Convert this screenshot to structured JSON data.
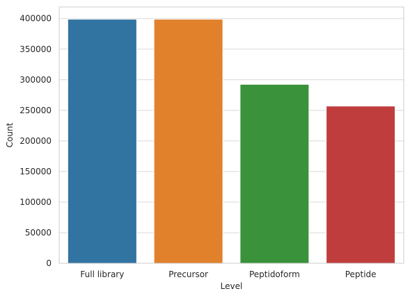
{
  "chart_data": {
    "type": "bar",
    "categories": [
      "Full library",
      "Precursor",
      "Peptidoform",
      "Peptide"
    ],
    "values": [
      399000,
      399000,
      292500,
      257000
    ],
    "colors": [
      "#3274a1",
      "#e1812c",
      "#3a923a",
      "#c03d3e"
    ],
    "xlabel": "Level",
    "ylabel": "Count",
    "ylim": [
      0,
      419000
    ],
    "yticks": [
      0,
      50000,
      100000,
      150000,
      200000,
      250000,
      300000,
      350000,
      400000
    ],
    "grid": "horizontal",
    "style": "whitegrid"
  }
}
